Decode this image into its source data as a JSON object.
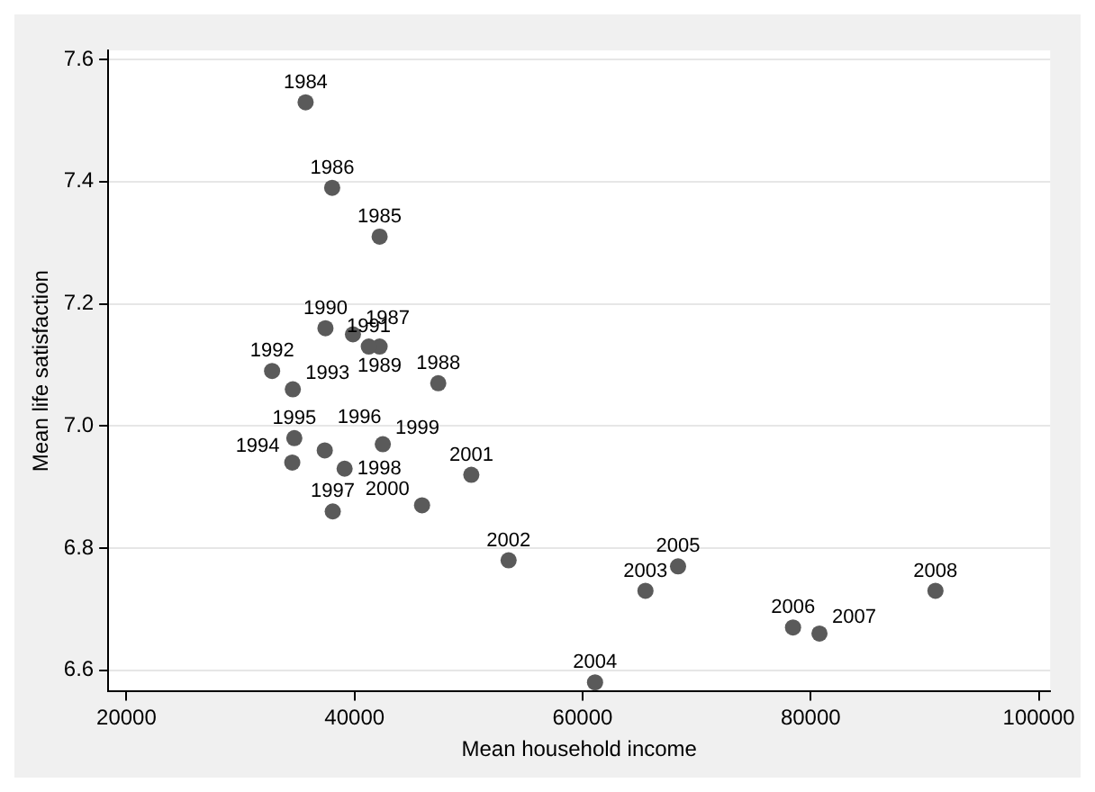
{
  "chart_data": {
    "type": "scatter",
    "xlabel": "Mean household income",
    "ylabel": "Mean life satisfaction",
    "xlim": [
      18400,
      101000
    ],
    "ylim": [
      6.565,
      7.615
    ],
    "xticks": [
      20000,
      40000,
      60000,
      80000,
      100000
    ],
    "yticks": [
      6.6,
      6.8,
      {
        "value": 7,
        "label": "7.0"
      },
      7.2,
      7.4,
      7.6
    ],
    "grid": "y",
    "marker": "circle",
    "legend": false,
    "series": [
      {
        "color": "#5a5a5a",
        "x": [
          35710,
          42200,
          38040,
          39860,
          47340,
          42200,
          37450,
          41250,
          32770,
          34590,
          34540,
          34720,
          37390,
          38090,
          39130,
          42480,
          45920,
          50240,
          53510,
          65510,
          61090,
          68370,
          78450,
          80770,
          90940
        ],
        "values": [
          7.53,
          7.31,
          7.39,
          7.15,
          7.07,
          7.13,
          7.16,
          7.13,
          7.09,
          7.06,
          6.94,
          6.98,
          6.96,
          6.86,
          6.93,
          6.97,
          6.87,
          6.92,
          6.78,
          6.73,
          6.58,
          6.77,
          6.67,
          6.66,
          6.73
        ]
      }
    ],
    "annotations": [
      {
        "text": "1984",
        "x": 35710,
        "y": 7.53
      },
      {
        "text": "1985",
        "x": 42200,
        "y": 7.31
      },
      {
        "text": "1986",
        "x": 38040,
        "y": 7.39
      },
      {
        "text": "1987",
        "x": 39860,
        "y": 7.15
      },
      {
        "text": "1988",
        "x": 47340,
        "y": 7.07
      },
      {
        "text": "1989",
        "x": 42200,
        "y": 7.13
      },
      {
        "text": "1990",
        "x": 37450,
        "y": 7.16
      },
      {
        "text": "1991",
        "x": 41250,
        "y": 7.13
      },
      {
        "text": "1992",
        "x": 32770,
        "y": 7.09
      },
      {
        "text": "1993",
        "x": 34590,
        "y": 7.06
      },
      {
        "text": "1994",
        "x": 34540,
        "y": 6.94
      },
      {
        "text": "1995",
        "x": 34720,
        "y": 6.98
      },
      {
        "text": "1996",
        "x": 37390,
        "y": 6.96
      },
      {
        "text": "1997",
        "x": 38090,
        "y": 6.86
      },
      {
        "text": "1998",
        "x": 39130,
        "y": 6.93
      },
      {
        "text": "1999",
        "x": 42480,
        "y": 6.97
      },
      {
        "text": "2000",
        "x": 45920,
        "y": 6.87
      },
      {
        "text": "2001",
        "x": 50240,
        "y": 6.92
      },
      {
        "text": "2002",
        "x": 53510,
        "y": 6.78
      },
      {
        "text": "2003",
        "x": 65510,
        "y": 6.73
      },
      {
        "text": "2004",
        "x": 61090,
        "y": 6.58
      },
      {
        "text": "2005",
        "x": 68370,
        "y": 6.77
      },
      {
        "text": "2006",
        "x": 78450,
        "y": 6.67
      },
      {
        "text": "2007",
        "x": 80770,
        "y": 6.66
      },
      {
        "text": "2008",
        "x": 90940,
        "y": 6.73
      }
    ]
  }
}
